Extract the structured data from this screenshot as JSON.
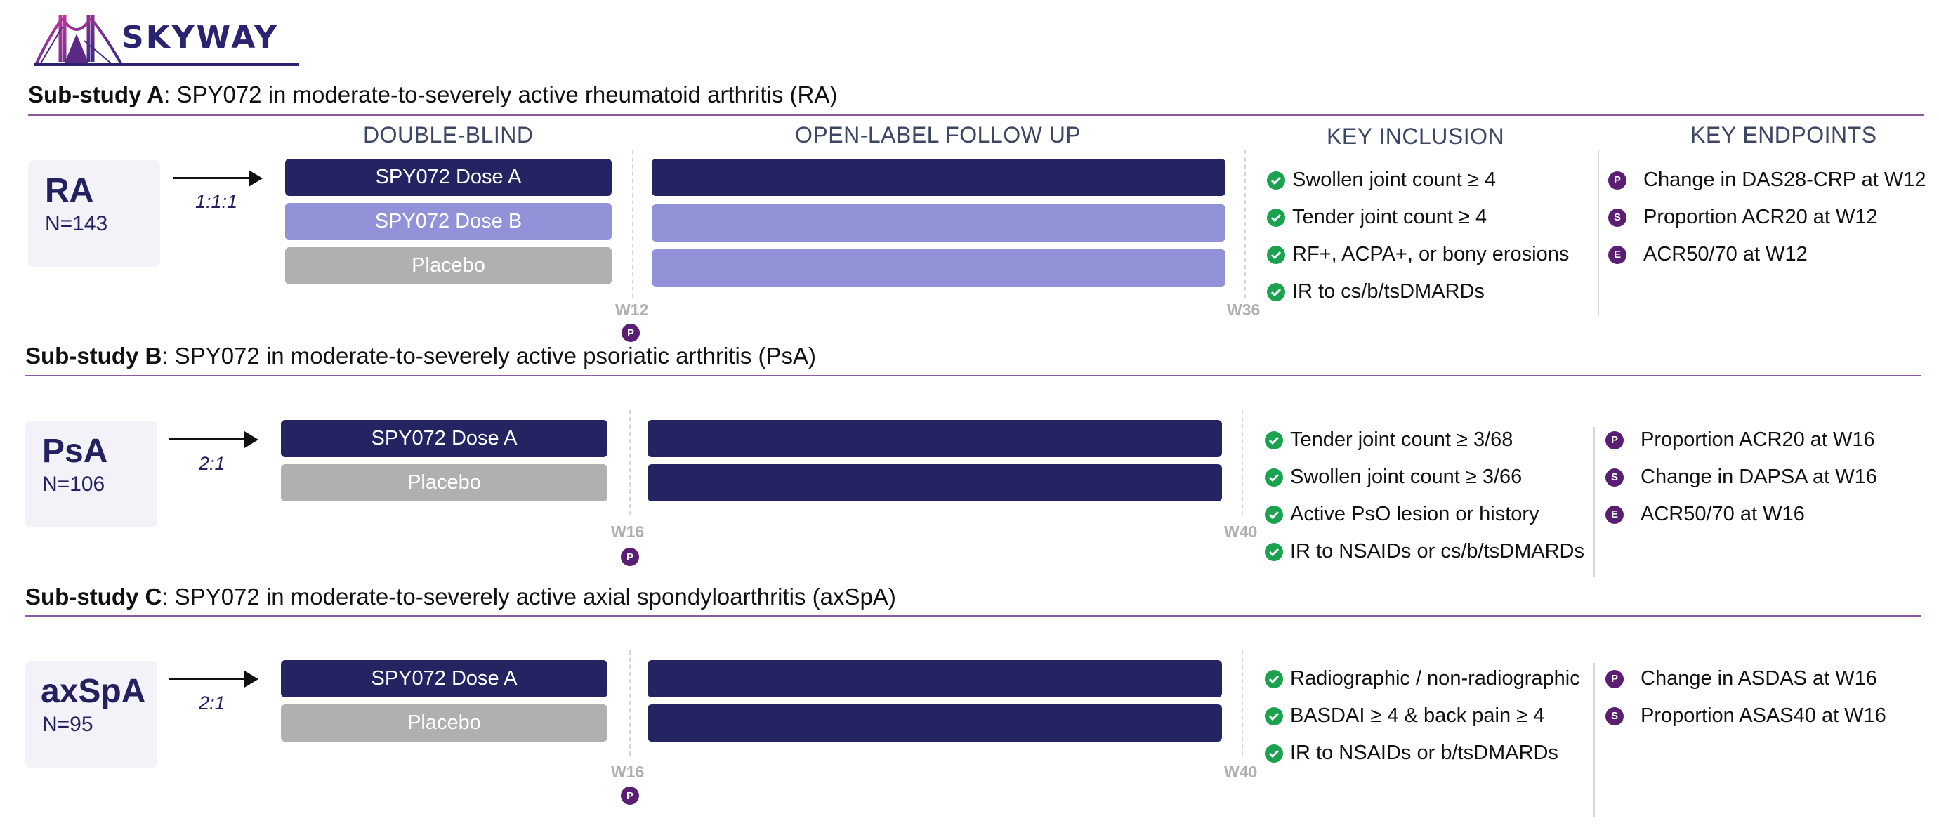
{
  "logo": {
    "text": "SKYWAY"
  },
  "headers": {
    "double_blind": "DOUBLE-BLIND",
    "open_label": "OPEN-LABEL FOLLOW UP",
    "key_inclusion": "KEY INCLUSION",
    "key_endpoints": "KEY ENDPOINTS"
  },
  "colors": {
    "dark": "#252462",
    "light": "#9192d8",
    "grey": "#b0b0b0",
    "check": "#1aa24f",
    "marker": "#5a1e73",
    "rule": "#8e5a9e"
  },
  "studies": [
    {
      "title_bold": "Sub-study A",
      "title_rest": ": SPY072 in moderate-to-severely active rheumatoid arthritis (RA)",
      "population": "RA",
      "n": "N=143",
      "ratio": "1:1:1",
      "arms": [
        "SPY072 Dose A",
        "SPY072 Dose B",
        "Placebo"
      ],
      "week_start": "W12",
      "week_end": "W36",
      "primary_marker": "P",
      "inclusion": [
        "Swollen joint count ≥ 4",
        "Tender joint count ≥ 4",
        "RF+, ACPA+, or bony erosions",
        "IR to cs/b/tsDMARDs"
      ],
      "endpoints": [
        {
          "mark": "P",
          "text": "Change in DAS28-CRP at W12"
        },
        {
          "mark": "S",
          "text": "Proportion ACR20 at W12"
        },
        {
          "mark": "E",
          "text": "ACR50/70 at W12"
        }
      ]
    },
    {
      "title_bold": "Sub-study B",
      "title_rest": ": SPY072 in moderate-to-severely active psoriatic arthritis (PsA)",
      "population": "PsA",
      "n": "N=106",
      "ratio": "2:1",
      "arms": [
        "SPY072 Dose A",
        "Placebo"
      ],
      "week_start": "W16",
      "week_end": "W40",
      "primary_marker": "P",
      "inclusion": [
        "Tender joint count ≥ 3/68",
        "Swollen joint count ≥ 3/66",
        "Active PsO lesion or history",
        "IR to NSAIDs or cs/b/tsDMARDs"
      ],
      "endpoints": [
        {
          "mark": "P",
          "text": "Proportion ACR20 at W16"
        },
        {
          "mark": "S",
          "text": "Change in DAPSA at W16"
        },
        {
          "mark": "E",
          "text": "ACR50/70 at W16"
        }
      ]
    },
    {
      "title_bold": "Sub-study C",
      "title_rest": ": SPY072 in moderate-to-severely active axial spondyloarthritis (axSpA)",
      "population": "axSpA",
      "n": "N=95",
      "ratio": "2:1",
      "arms": [
        "SPY072 Dose A",
        "Placebo"
      ],
      "week_start": "W16",
      "week_end": "W40",
      "primary_marker": "P",
      "inclusion": [
        "Radiographic / non-radiographic",
        "BASDAI ≥ 4 & back pain ≥ 4",
        "IR to NSAIDs or b/tsDMARDs"
      ],
      "endpoints": [
        {
          "mark": "P",
          "text": "Change in ASDAS at W16"
        },
        {
          "mark": "S",
          "text": "Proportion ASAS40 at W16"
        }
      ]
    }
  ]
}
